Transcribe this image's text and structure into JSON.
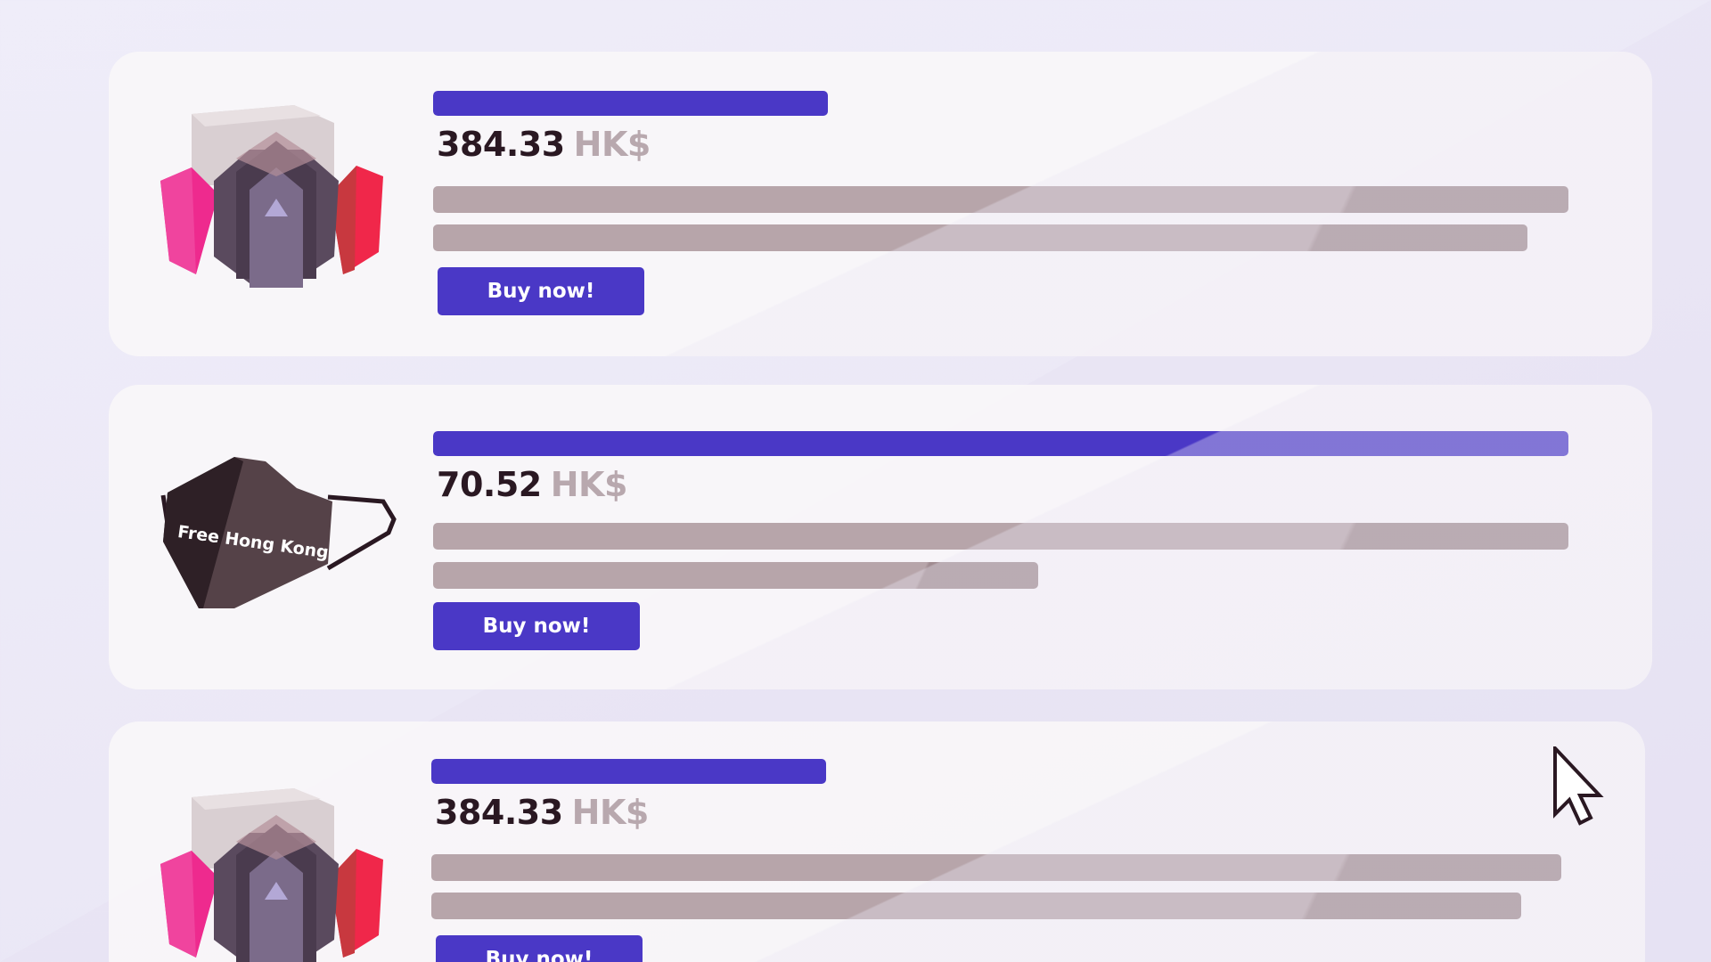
{
  "colors": {
    "accent": "#4a38c6",
    "line_light": "#b7a5aa",
    "line_dark": "#a08b90",
    "price_text": "#2a1822",
    "currency_text": "#b8a8ae",
    "button_text": "#ffffff"
  },
  "products": [
    {
      "icon": "respirator-mask-icon",
      "price": "384.33",
      "currency": "HK$",
      "title_progress": 0.348,
      "desc_line_1": 1.0,
      "desc_line_2": 0.964,
      "buy_label": "Buy now!"
    },
    {
      "icon": "face-mask-icon",
      "mask_text": "Free Hong Kong",
      "price": "70.52",
      "currency": "HK$",
      "title_progress": 1.0,
      "desc_line_1": 1.0,
      "desc_line_2": 0.533,
      "buy_label": "Buy now!"
    },
    {
      "icon": "respirator-mask-icon",
      "price": "384.33",
      "currency": "HK$",
      "title_progress": 0.348,
      "desc_line_1": 0.995,
      "desc_line_2": 0.96,
      "buy_label": "Buy now!"
    }
  ],
  "cursor_icon": "mouse-pointer-icon"
}
